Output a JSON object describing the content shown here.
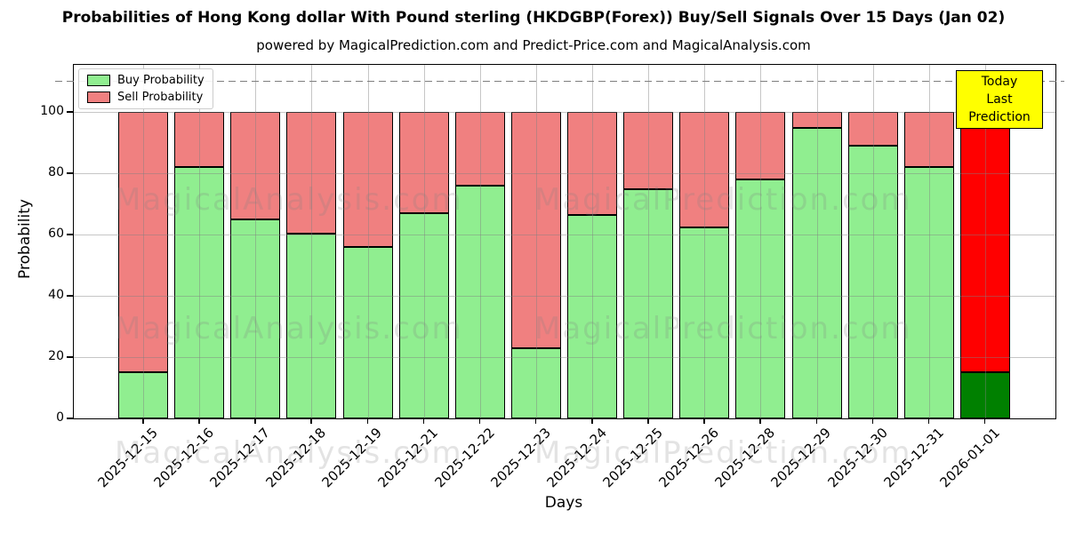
{
  "title": "Probabilities of Hong Kong dollar With Pound sterling (HKDGBP(Forex)) Buy/Sell Signals Over 15 Days (Jan 02)",
  "subtitle": "powered by MagicalPrediction.com and Predict-Price.com and MagicalAnalysis.com",
  "legend": {
    "buy_label": "Buy Probability",
    "sell_label": "Sell Probability"
  },
  "annotation": {
    "line1": "Today",
    "line2": "Last Prediction",
    "background": "#ffff00"
  },
  "watermarks": {
    "left": "MagicalAnalysis.com",
    "right": "MagicalPrediction.com"
  },
  "colors": {
    "buy": "#90EE90",
    "sell": "#F08080",
    "today_buy": "#008000",
    "today_sell": "#FF0000",
    "grid": "#b0b0b0",
    "dashed_line": "#7f7f7f"
  },
  "chart_data": {
    "type": "bar",
    "stacked": true,
    "title": "Probabilities of Hong Kong dollar With Pound sterling (HKDGBP(Forex)) Buy/Sell Signals Over 15 Days (Jan 02)",
    "xlabel": "Days",
    "ylabel": "Probability",
    "ylim": [
      0,
      115.5
    ],
    "yticks": [
      0,
      20,
      40,
      60,
      80,
      100
    ],
    "dashed_line_y": 110,
    "grid": true,
    "legend_position": "upper left",
    "categories": [
      "2025-12-15",
      "2025-12-16",
      "2025-12-17",
      "2025-12-18",
      "2025-12-19",
      "2025-12-21",
      "2025-12-22",
      "2025-12-23",
      "2025-12-24",
      "2025-12-25",
      "2025-12-26",
      "2025-12-28",
      "2025-12-29",
      "2025-12-30",
      "2025-12-31",
      "2026-01-01"
    ],
    "series": [
      {
        "name": "Buy Probability",
        "color": "#90EE90",
        "values": [
          15,
          82,
          65,
          60.5,
          56,
          67,
          76,
          23,
          66.5,
          75,
          62.5,
          78,
          95,
          89,
          82,
          15
        ]
      },
      {
        "name": "Sell Probability",
        "color": "#F08080",
        "values": [
          85,
          18,
          35,
          39.5,
          44,
          33,
          24,
          77,
          33.5,
          25,
          37.5,
          22,
          5,
          11,
          18,
          85
        ]
      }
    ],
    "highlight_last_bar": {
      "buy_color": "#008000",
      "sell_color": "#FF0000",
      "label": "Today Last Prediction"
    }
  }
}
